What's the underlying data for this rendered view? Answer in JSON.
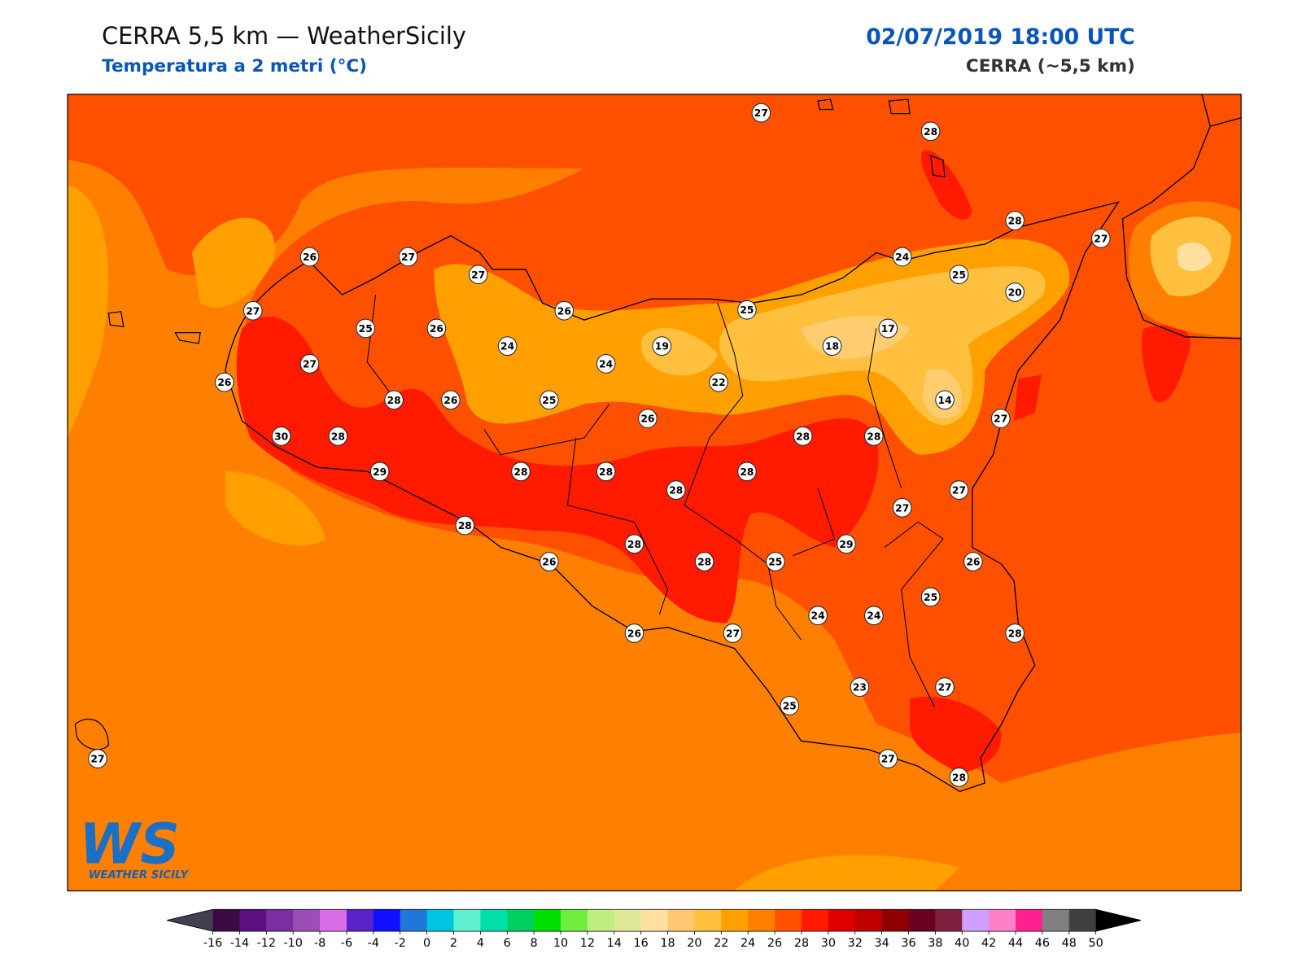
{
  "header": {
    "title": "CERRA 5,5 km — WeatherSicily",
    "subtitle": "Temperatura a 2 metri (°C)",
    "datetime": "02/07/2019 18:00 UTC",
    "model": "CERRA (~5,5 km)"
  },
  "stations": [
    27,
    28,
    28,
    27,
    26,
    27,
    27,
    24,
    25,
    20,
    27,
    26,
    25,
    25,
    26,
    17,
    24,
    19,
    18,
    27,
    24,
    26,
    22,
    28,
    26,
    25,
    14,
    26,
    27,
    30,
    28,
    28,
    28,
    29,
    28,
    28,
    28,
    28,
    27,
    27,
    28,
    28,
    29,
    26,
    28,
    25,
    26,
    25,
    24,
    24,
    28,
    26,
    27,
    23,
    27,
    25,
    27,
    27,
    28
  ],
  "logo": {
    "mark": "WS",
    "name": "WEATHER SICILY"
  },
  "colorbar": {
    "ticks": [
      -16,
      -14,
      -12,
      -10,
      -8,
      -6,
      -4,
      -2,
      0,
      2,
      4,
      6,
      8,
      10,
      12,
      14,
      16,
      18,
      20,
      22,
      24,
      26,
      28,
      30,
      32,
      34,
      36,
      38,
      40,
      42,
      44,
      46,
      48,
      50
    ],
    "colors": [
      "#3b0a45",
      "#5c1080",
      "#7a2fa0",
      "#9b4db8",
      "#d86ee8",
      "#5a22c8",
      "#1010ff",
      "#1f78d8",
      "#00c4e0",
      "#5ff0d0",
      "#00e0a8",
      "#00d060",
      "#00e000",
      "#70ee40",
      "#c0ee80",
      "#e0e898",
      "#ffe0a0",
      "#ffc870",
      "#ffc040",
      "#ffa000",
      "#ff8000",
      "#ff5000",
      "#ff1a00",
      "#e00000",
      "#c00000",
      "#900000",
      "#6a0020",
      "#802040",
      "#d0a0ff",
      "#ff80c8",
      "#ff2090",
      "#808080",
      "#404040"
    ],
    "under_color": "#404050",
    "over_color": "#000000"
  }
}
